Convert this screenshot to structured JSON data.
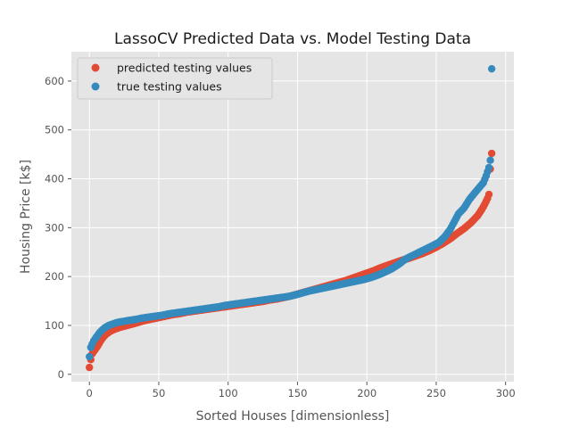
{
  "chart_data": {
    "type": "scatter",
    "title": "LassoCV Predicted Data vs. Model Testing Data",
    "xlabel": "Sorted Houses [dimensionless]",
    "ylabel": "Housing Price [k$]",
    "xlim": [
      -13,
      306
    ],
    "ylim": [
      -15,
      660
    ],
    "xticks": [
      0,
      50,
      100,
      150,
      200,
      250,
      300
    ],
    "yticks": [
      0,
      100,
      200,
      300,
      400,
      500,
      600
    ],
    "grid": true,
    "legend_position": "top-left",
    "series": [
      {
        "name": "predicted testing values",
        "color": "#E24A33",
        "values": [
          [
            0,
            14
          ],
          [
            1,
            30
          ],
          [
            2,
            42
          ],
          [
            4,
            50
          ],
          [
            6,
            58
          ],
          [
            8,
            68
          ],
          [
            10,
            76
          ],
          [
            12,
            82
          ],
          [
            15,
            88
          ],
          [
            18,
            92
          ],
          [
            22,
            96
          ],
          [
            26,
            99
          ],
          [
            30,
            102
          ],
          [
            35,
            106
          ],
          [
            40,
            110
          ],
          [
            45,
            113
          ],
          [
            50,
            116
          ],
          [
            55,
            119
          ],
          [
            60,
            122
          ],
          [
            65,
            124
          ],
          [
            70,
            127
          ],
          [
            75,
            129
          ],
          [
            80,
            131
          ],
          [
            85,
            133
          ],
          [
            90,
            135
          ],
          [
            95,
            137
          ],
          [
            100,
            139
          ],
          [
            105,
            141
          ],
          [
            110,
            143
          ],
          [
            115,
            145
          ],
          [
            120,
            147
          ],
          [
            125,
            149
          ],
          [
            130,
            152
          ],
          [
            135,
            154
          ],
          [
            140,
            157
          ],
          [
            145,
            160
          ],
          [
            150,
            164
          ],
          [
            155,
            168
          ],
          [
            160,
            172
          ],
          [
            165,
            176
          ],
          [
            170,
            180
          ],
          [
            175,
            184
          ],
          [
            180,
            188
          ],
          [
            185,
            192
          ],
          [
            190,
            197
          ],
          [
            195,
            202
          ],
          [
            200,
            207
          ],
          [
            205,
            212
          ],
          [
            210,
            218
          ],
          [
            215,
            223
          ],
          [
            220,
            228
          ],
          [
            225,
            233
          ],
          [
            230,
            237
          ],
          [
            235,
            242
          ],
          [
            240,
            247
          ],
          [
            245,
            253
          ],
          [
            250,
            260
          ],
          [
            255,
            268
          ],
          [
            260,
            277
          ],
          [
            265,
            288
          ],
          [
            270,
            298
          ],
          [
            275,
            310
          ],
          [
            280,
            325
          ],
          [
            283,
            338
          ],
          [
            285,
            348
          ],
          [
            287,
            360
          ],
          [
            288,
            368
          ],
          [
            289,
            420
          ],
          [
            290,
            452
          ]
        ]
      },
      {
        "name": "true testing values",
        "color": "#348ABD",
        "values": [
          [
            0,
            36
          ],
          [
            1,
            55
          ],
          [
            2,
            62
          ],
          [
            3,
            68
          ],
          [
            5,
            76
          ],
          [
            7,
            84
          ],
          [
            9,
            90
          ],
          [
            11,
            95
          ],
          [
            14,
            100
          ],
          [
            17,
            103
          ],
          [
            20,
            106
          ],
          [
            24,
            108
          ],
          [
            28,
            110
          ],
          [
            33,
            112
          ],
          [
            38,
            115
          ],
          [
            43,
            117
          ],
          [
            48,
            119
          ],
          [
            53,
            121
          ],
          [
            58,
            124
          ],
          [
            63,
            126
          ],
          [
            68,
            128
          ],
          [
            73,
            130
          ],
          [
            78,
            132
          ],
          [
            83,
            134
          ],
          [
            88,
            136
          ],
          [
            93,
            138
          ],
          [
            98,
            141
          ],
          [
            103,
            143
          ],
          [
            108,
            145
          ],
          [
            113,
            147
          ],
          [
            118,
            149
          ],
          [
            123,
            151
          ],
          [
            128,
            153
          ],
          [
            133,
            155
          ],
          [
            138,
            157
          ],
          [
            143,
            159
          ],
          [
            148,
            162
          ],
          [
            153,
            166
          ],
          [
            158,
            170
          ],
          [
            163,
            173
          ],
          [
            168,
            176
          ],
          [
            173,
            179
          ],
          [
            178,
            182
          ],
          [
            183,
            185
          ],
          [
            188,
            188
          ],
          [
            193,
            191
          ],
          [
            198,
            194
          ],
          [
            203,
            198
          ],
          [
            208,
            203
          ],
          [
            213,
            209
          ],
          [
            218,
            216
          ],
          [
            223,
            225
          ],
          [
            228,
            236
          ],
          [
            233,
            243
          ],
          [
            238,
            250
          ],
          [
            243,
            257
          ],
          [
            248,
            264
          ],
          [
            252,
            270
          ],
          [
            256,
            281
          ],
          [
            260,
            296
          ],
          [
            263,
            312
          ],
          [
            266,
            328
          ],
          [
            270,
            340
          ],
          [
            274,
            358
          ],
          [
            278,
            372
          ],
          [
            281,
            382
          ],
          [
            284,
            392
          ],
          [
            286,
            406
          ],
          [
            288,
            423
          ],
          [
            289,
            438
          ],
          [
            290,
            625
          ]
        ]
      }
    ]
  }
}
